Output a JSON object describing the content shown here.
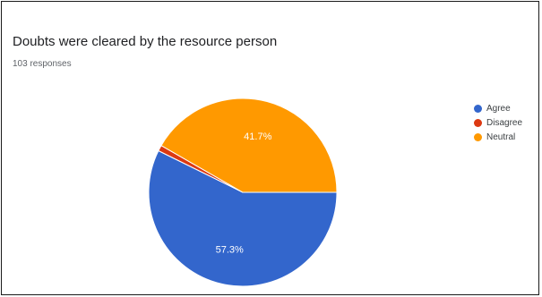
{
  "chart_data": {
    "type": "pie",
    "title": "Doubts were cleared by the resource person",
    "subtitle": "103 responses",
    "categories": [
      "Agree",
      "Disagree",
      "Neutral"
    ],
    "values": [
      57.3,
      1.0,
      41.7
    ],
    "data_labels": [
      "57.3%",
      "",
      "41.7%"
    ],
    "colors": [
      "#3366cc",
      "#dc3912",
      "#ff9900"
    ],
    "legend_position": "right"
  }
}
